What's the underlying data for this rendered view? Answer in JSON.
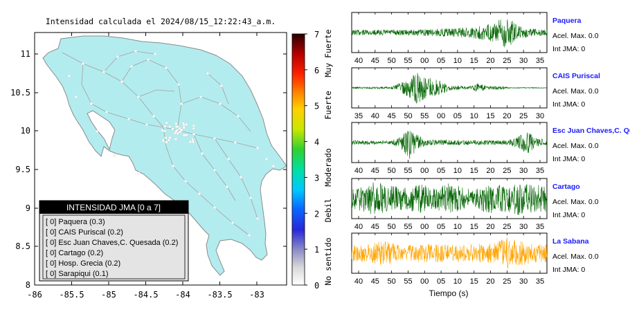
{
  "map": {
    "title": "Intensidad calculada el 2024/08/15_12:22:43_a.m.",
    "x_ticks": [
      "-86",
      "-85.5",
      "-85",
      "-84.5",
      "-84",
      "-83.5",
      "-83"
    ],
    "y_ticks": [
      "11",
      "10.5",
      "10",
      "9.5",
      "9",
      "8.5",
      "8"
    ],
    "land_color": "#b3ecee",
    "legend": {
      "title": "INTENSIDAD JMA [0 a 7]",
      "items": [
        "[ 0]  Paquera (0.3)",
        "[ 0]  CAIS Puriscal (0.2)",
        "[ 0]  Esc Juan Chaves,C. Quesada (0.2)",
        "[ 0]  Cartago (0.2)",
        "[ 0]  Hosp. Grecia (0.2)",
        "[ 0]  Sarapiqui (0.1)"
      ]
    }
  },
  "colorbar": {
    "ticks": [
      "7",
      "6",
      "5",
      "4",
      "3",
      "2",
      "1",
      "0"
    ],
    "labels": [
      "Muy Fuerte",
      "Fuerte",
      "Moderado",
      "Debil",
      "No sentido"
    ]
  },
  "seismograms": {
    "xlabel": "Tiempo (s)",
    "channels": [
      {
        "name": "Paquera",
        "acel": "Acel. Max. 0.0",
        "int": "Int JMA: 0",
        "color": "#006400",
        "ticks": [
          "40",
          "45",
          "50",
          "55",
          "00",
          "05",
          "10",
          "15",
          "20",
          "25",
          "30",
          "35"
        ],
        "envelope": [
          [
            0,
            0.15
          ],
          [
            0.3,
            0.15
          ],
          [
            0.55,
            0.25
          ],
          [
            0.68,
            0.4
          ],
          [
            0.74,
            0.55
          ],
          [
            0.79,
            1.0
          ],
          [
            0.84,
            0.45
          ],
          [
            0.9,
            0.25
          ],
          [
            1,
            0.15
          ]
        ]
      },
      {
        "name": "CAIS Puriscal",
        "acel": "Acel. Max. 0.0",
        "int": "Int JMA: 0",
        "color": "#006400",
        "ticks": [
          "35",
          "40",
          "45",
          "50",
          "55",
          "00",
          "05",
          "10",
          "15",
          "20",
          "25",
          "30"
        ],
        "envelope": [
          [
            0,
            0.05
          ],
          [
            0.2,
            0.05
          ],
          [
            0.25,
            0.3
          ],
          [
            0.3,
            0.55
          ],
          [
            0.33,
            0.95
          ],
          [
            0.38,
            0.6
          ],
          [
            0.45,
            0.4
          ],
          [
            0.5,
            0.15
          ],
          [
            0.6,
            0.08
          ],
          [
            0.65,
            0.25
          ],
          [
            0.7,
            0.08
          ],
          [
            0.78,
            0.1
          ],
          [
            0.8,
            0.03
          ],
          [
            1,
            0.02
          ]
        ]
      },
      {
        "name": "Esc Juan Chaves,C. Qu",
        "acel": "Acel. Max. 0.0",
        "int": "Int JMA: 0",
        "color": "#006400",
        "ticks": [
          "40",
          "45",
          "50",
          "55",
          "00",
          "05",
          "10",
          "15",
          "20",
          "25",
          "30",
          "35"
        ],
        "envelope": [
          [
            0,
            0.12
          ],
          [
            0.2,
            0.1
          ],
          [
            0.25,
            0.3
          ],
          [
            0.3,
            0.95
          ],
          [
            0.33,
            0.5
          ],
          [
            0.38,
            0.15
          ],
          [
            0.8,
            0.12
          ],
          [
            0.86,
            0.4
          ],
          [
            0.9,
            0.6
          ],
          [
            0.94,
            0.3
          ],
          [
            1,
            0.12
          ]
        ]
      },
      {
        "name": "Cartago",
        "acel": "Acel. Max. 0.0",
        "int": "Int JMA: 0",
        "color": "#006400",
        "ticks": [
          "40",
          "45",
          "50",
          "55",
          "00",
          "05",
          "10",
          "15",
          "20",
          "25",
          "30",
          "35"
        ],
        "envelope": [
          [
            0,
            0.55
          ],
          [
            0.08,
            0.8
          ],
          [
            0.12,
            0.95
          ],
          [
            0.2,
            0.7
          ],
          [
            0.28,
            0.6
          ],
          [
            0.35,
            0.8
          ],
          [
            0.42,
            0.55
          ],
          [
            0.5,
            0.85
          ],
          [
            0.57,
            0.6
          ],
          [
            0.63,
            0.45
          ],
          [
            0.7,
            0.85
          ],
          [
            0.78,
            0.7
          ],
          [
            0.85,
            0.9
          ],
          [
            0.92,
            0.75
          ],
          [
            1,
            0.7
          ]
        ]
      },
      {
        "name": "La Sabana",
        "acel": "Acel. Max. 0.0",
        "int": "Int JMA: 0",
        "color": "#ffa500",
        "ticks": [
          "40",
          "45",
          "50",
          "55",
          "00",
          "05",
          "10",
          "15",
          "20",
          "25",
          "30",
          "35"
        ],
        "envelope": [
          [
            0,
            0.45
          ],
          [
            0.1,
            0.5
          ],
          [
            0.15,
            0.7
          ],
          [
            0.25,
            0.45
          ],
          [
            0.4,
            0.5
          ],
          [
            0.55,
            0.45
          ],
          [
            0.7,
            0.55
          ],
          [
            0.8,
            0.9
          ],
          [
            0.86,
            0.7
          ],
          [
            0.92,
            0.55
          ],
          [
            1,
            0.5
          ]
        ]
      }
    ]
  }
}
